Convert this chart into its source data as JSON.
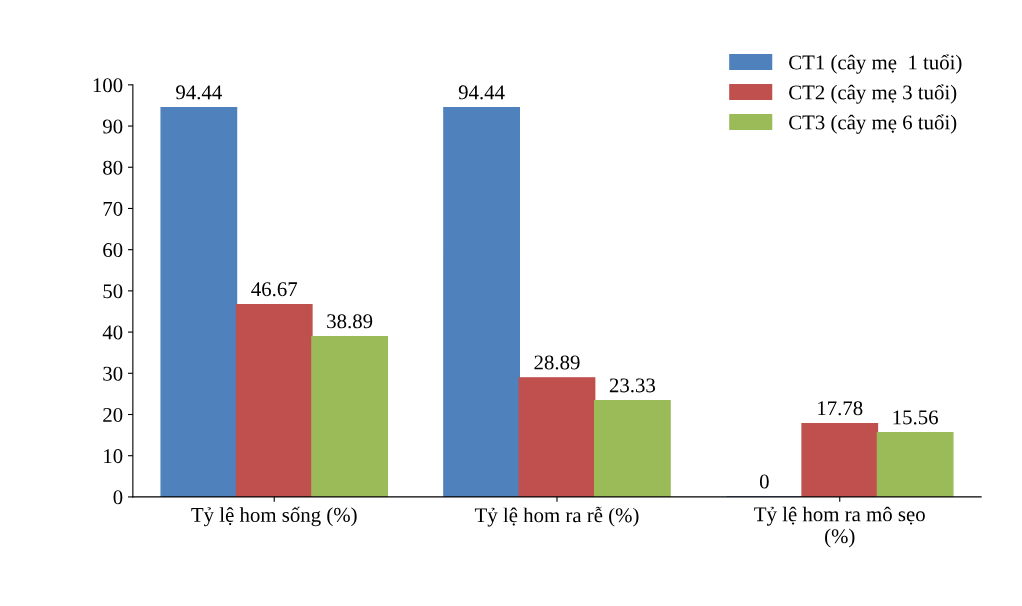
{
  "chart_data": {
    "type": "bar",
    "categories": [
      "Tỷ lệ hom sống (%)",
      "Tỷ lệ hom ra rễ (%)",
      "Tỷ lệ hom ra mô sẹo\n(%)"
    ],
    "series": [
      {
        "name": "CT1 (cây mẹ  1 tuổi)",
        "color": "#4f81bd",
        "values": [
          94.44,
          94.44,
          0
        ]
      },
      {
        "name": "CT2 (cây mẹ 3 tuổi)",
        "color": "#c0504d",
        "values": [
          46.67,
          28.89,
          17.78
        ]
      },
      {
        "name": "CT3 (cây mẹ 6 tuổi)",
        "color": "#9bbb59",
        "values": [
          38.89,
          23.33,
          15.56
        ]
      }
    ],
    "ylim": [
      0,
      100
    ],
    "yticks": [
      0,
      10,
      20,
      30,
      40,
      50,
      60,
      70,
      80,
      90,
      100
    ],
    "data_labels": true,
    "legend": "top right",
    "grid": false
  }
}
